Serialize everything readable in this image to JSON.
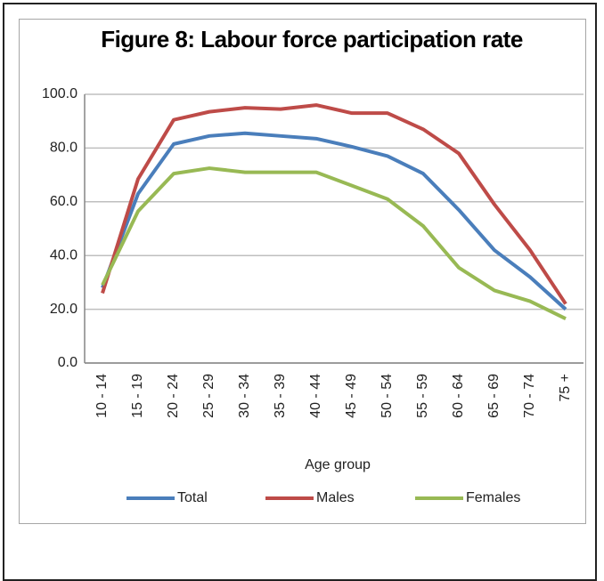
{
  "chart_data": {
    "type": "line",
    "title": "Figure 8: Labour force participation rate",
    "x_label": "Age group",
    "categories": [
      "10 - 14",
      "15 - 19",
      "20 - 24",
      "25 - 29",
      "30 - 34",
      "35 - 39",
      "40 - 44",
      "45 - 49",
      "50 - 54",
      "55 - 59",
      "60 - 64",
      "65 - 69",
      "70 - 74",
      "75 +"
    ],
    "series": [
      {
        "name": "Total",
        "color": "#4a7ebb",
        "values": [
          28,
          63,
          81.5,
          84.5,
          85.5,
          84.5,
          83.5,
          80.5,
          77,
          70.5,
          57,
          42,
          32,
          20
        ]
      },
      {
        "name": "Males",
        "color": "#be4b48",
        "values": [
          26,
          68.5,
          90.5,
          93.5,
          95,
          94.5,
          96,
          93,
          93,
          87,
          78,
          59,
          42,
          22
        ]
      },
      {
        "name": "Females",
        "color": "#98b954",
        "values": [
          29,
          56.5,
          70.5,
          72.5,
          71,
          71,
          71,
          66,
          61,
          51,
          35.5,
          27,
          23,
          16.5
        ]
      }
    ],
    "ylim": [
      0,
      100
    ],
    "yticks": [
      {
        "value": 0,
        "label": "0.0"
      },
      {
        "value": 20,
        "label": "20.0"
      },
      {
        "value": 40,
        "label": "40.0"
      },
      {
        "value": 60,
        "label": "60.0"
      },
      {
        "value": 80,
        "label": "80.0"
      },
      {
        "value": 100,
        "label": "100.0"
      }
    ],
    "grid": true,
    "legend": "bottom"
  }
}
